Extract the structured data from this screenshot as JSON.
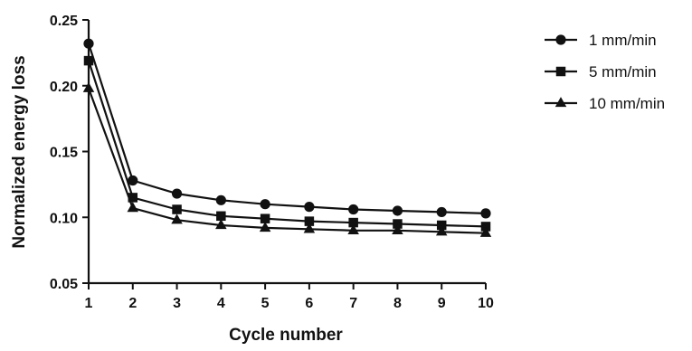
{
  "chart_data": {
    "type": "line",
    "title": "",
    "xlabel": "Cycle number",
    "ylabel": "Normalized energy loss",
    "x": [
      1,
      2,
      3,
      4,
      5,
      6,
      7,
      8,
      9,
      10
    ],
    "xlim": [
      1,
      10
    ],
    "ylim": [
      0.05,
      0.25
    ],
    "xticks": [
      "1",
      "2",
      "3",
      "4",
      "5",
      "6",
      "7",
      "8",
      "9",
      "10"
    ],
    "yticks": [
      "0.05",
      "0.10",
      "0.15",
      "0.20",
      "0.25"
    ],
    "grid": false,
    "legend_position": "top-right",
    "series": [
      {
        "name": "1 mm/min",
        "marker": "circle",
        "values": [
          0.232,
          0.128,
          0.118,
          0.113,
          0.11,
          0.108,
          0.106,
          0.105,
          0.104,
          0.103
        ]
      },
      {
        "name": "5 mm/min",
        "marker": "square",
        "values": [
          0.219,
          0.115,
          0.106,
          0.101,
          0.099,
          0.097,
          0.096,
          0.095,
          0.094,
          0.093
        ]
      },
      {
        "name": "10 mm/min",
        "marker": "triangle",
        "values": [
          0.198,
          0.107,
          0.098,
          0.094,
          0.092,
          0.091,
          0.09,
          0.09,
          0.089,
          0.088
        ]
      }
    ],
    "colors": {
      "series": "#111111",
      "axis": "#111111"
    }
  }
}
